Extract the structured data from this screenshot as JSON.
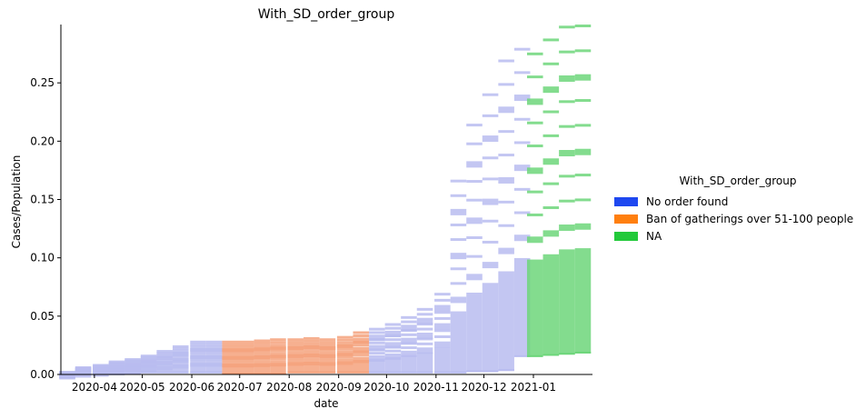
{
  "chart_data": {
    "type": "bar",
    "title": "With_SD_order_group",
    "xlabel": "date",
    "ylabel": "Cases/Population",
    "x_tick_labels": [
      "2020-04",
      "2020-05",
      "2020-06",
      "2020-07",
      "2020-08",
      "2020-09",
      "2020-10",
      "2020-11",
      "2020-12",
      "2021-01"
    ],
    "y_ticks": [
      0.0,
      0.05,
      0.1,
      0.15,
      0.2,
      0.25
    ],
    "y_tick_labels": [
      "0.00",
      "0.05",
      "0.10",
      "0.15",
      "0.20",
      "0.25"
    ],
    "ylim": [
      0,
      0.3
    ],
    "x_range": [
      "2020-03-11",
      "2021-02-07"
    ],
    "legend": {
      "title": "With_SD_order_group",
      "placement": "right",
      "entries": [
        {
          "label": "No order found",
          "color": "#1e48f0"
        },
        {
          "label": "Ban of gatherings over 51-100 people",
          "color": "#ff7f0e"
        },
        {
          "label": "NA",
          "color": "#22c93a"
        }
      ]
    },
    "series": [
      {
        "name": "No order found",
        "color": "#b8bcf0",
        "description": "semi-transparent weekly bars per county spanning min to max Cases/Population",
        "points": [
          {
            "x": "2020-03-15",
            "low": 0.0,
            "high": 0.003
          },
          {
            "x": "2020-03-25",
            "low": 0.0,
            "high": 0.007
          },
          {
            "x": "2020-04-05",
            "low": 0.0,
            "high": 0.009
          },
          {
            "x": "2020-04-15",
            "low": 0.0,
            "high": 0.012
          },
          {
            "x": "2020-04-25",
            "low": 0.0,
            "high": 0.014
          },
          {
            "x": "2020-05-05",
            "low": 0.001,
            "high": 0.017
          },
          {
            "x": "2020-05-15",
            "low": 0.001,
            "high": 0.021
          },
          {
            "x": "2020-05-25",
            "low": 0.001,
            "high": 0.025
          },
          {
            "x": "2020-06-05",
            "low": 0.001,
            "high": 0.029
          },
          {
            "x": "2020-06-15",
            "low": 0.001,
            "high": 0.029
          },
          {
            "x": "2020-09-25",
            "low": 0.001,
            "high": 0.04
          },
          {
            "x": "2020-10-05",
            "low": 0.001,
            "high": 0.044
          },
          {
            "x": "2020-10-15",
            "low": 0.001,
            "high": 0.05
          },
          {
            "x": "2020-10-25",
            "low": 0.001,
            "high": 0.057
          },
          {
            "x": "2020-11-05",
            "low": 0.001,
            "high": 0.07
          },
          {
            "x": "2020-11-15",
            "low": 0.001,
            "high": 0.167
          },
          {
            "x": "2020-11-25",
            "low": 0.002,
            "high": 0.215
          },
          {
            "x": "2020-12-05",
            "low": 0.002,
            "high": 0.241
          },
          {
            "x": "2020-12-15",
            "low": 0.003,
            "high": 0.27
          },
          {
            "x": "2020-12-25",
            "low": 0.015,
            "high": 0.28
          }
        ]
      },
      {
        "name": "Ban of gatherings over 51-100 people",
        "color": "#f4a27c",
        "description": "semi-transparent weekly bars per county spanning min to max Cases/Population",
        "points": [
          {
            "x": "2020-06-25",
            "low": 0.0,
            "high": 0.029
          },
          {
            "x": "2020-07-05",
            "low": 0.0,
            "high": 0.029
          },
          {
            "x": "2020-07-15",
            "low": 0.0,
            "high": 0.03
          },
          {
            "x": "2020-07-25",
            "low": 0.0,
            "high": 0.031
          },
          {
            "x": "2020-08-05",
            "low": 0.001,
            "high": 0.031
          },
          {
            "x": "2020-08-15",
            "low": 0.001,
            "high": 0.032
          },
          {
            "x": "2020-08-25",
            "low": 0.001,
            "high": 0.031
          },
          {
            "x": "2020-09-05",
            "low": 0.001,
            "high": 0.033
          },
          {
            "x": "2020-09-15",
            "low": 0.001,
            "high": 0.037
          }
        ]
      },
      {
        "name": "NA",
        "color": "#6dd67a",
        "description": "semi-transparent weekly bars per county spanning min to max Cases/Population",
        "points": [
          {
            "x": "2021-01-02",
            "low": 0.015,
            "high": 0.276
          },
          {
            "x": "2021-01-12",
            "low": 0.016,
            "high": 0.288
          },
          {
            "x": "2021-01-22",
            "low": 0.017,
            "high": 0.299
          },
          {
            "x": "2021-02-01",
            "low": 0.018,
            "high": 0.3
          }
        ]
      }
    ]
  }
}
